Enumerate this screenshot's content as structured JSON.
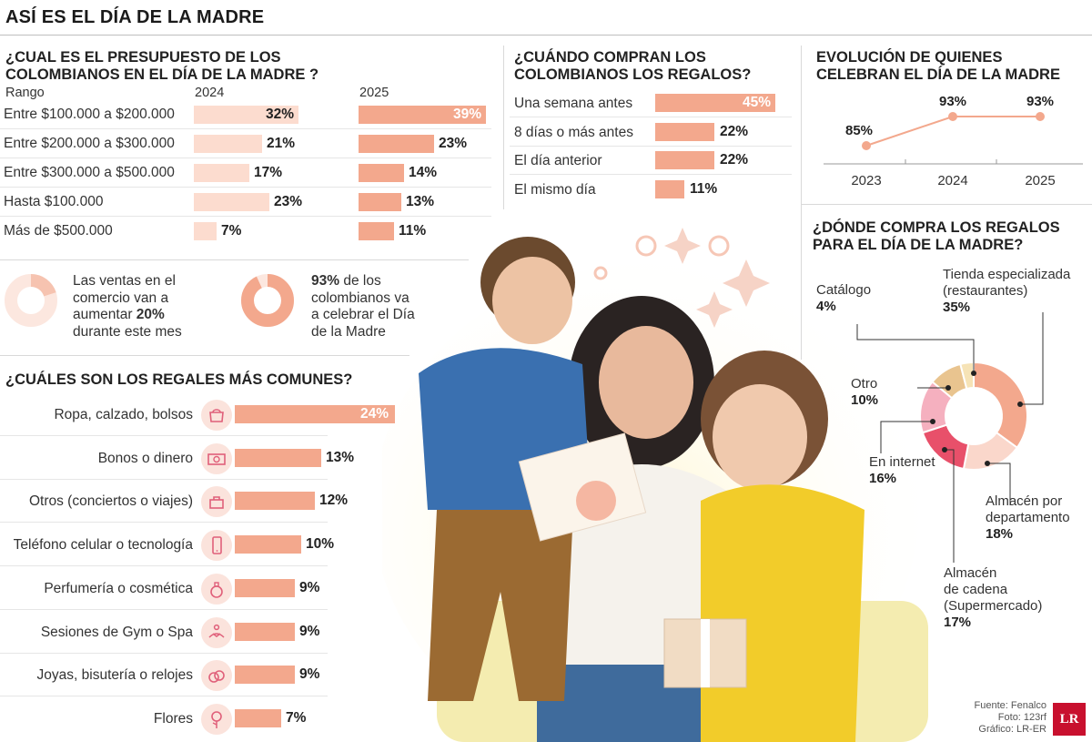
{
  "title": "ASÍ ES EL DÍA DE LA MADRE",
  "colors": {
    "bar2024": "#fcdccf",
    "bar2025": "#f3a88d",
    "barMain": "#f3a88d",
    "line": "#f3a88d"
  },
  "budget": {
    "title_line1": "¿CUAL ES EL PRESUPUESTO DE LOS",
    "title_line2": "COLOMBIANOS EN EL DÍA DE LA MADRE ?",
    "col_range": "Rango",
    "col_2024": "2024",
    "col_2025": "2025",
    "rows": [
      {
        "label": "Entre $100.000 a $200.000",
        "v2024": 32,
        "v2024_text": "32%",
        "v2025": 39,
        "v2025_text": "39%"
      },
      {
        "label": "Entre $200.000 a $300.000",
        "v2024": 21,
        "v2024_text": "21%",
        "v2025": 23,
        "v2025_text": "23%"
      },
      {
        "label": "Entre $300.000 a $500.000",
        "v2024": 17,
        "v2024_text": "17%",
        "v2025": 14,
        "v2025_text": "14%"
      },
      {
        "label": "Hasta $100.000",
        "v2024": 23,
        "v2024_text": "23%",
        "v2025": 13,
        "v2025_text": "13%"
      },
      {
        "label": "Más de $500.000",
        "v2024": 7,
        "v2024_text": "7%",
        "v2025": 11,
        "v2025_text": "11%"
      }
    ]
  },
  "facts": {
    "sales": {
      "line1": "Las ventas en el",
      "line2": "comercio van a",
      "line3_pre": "aumentar ",
      "line3_bold": "20%",
      "line4": "durante este mes",
      "pct": 20
    },
    "celebrate": {
      "line1_bold": "93%",
      "line1_rest": " de los",
      "line2": "colombianos va",
      "line3": "a celebrar el Día",
      "line4": "de la Madre",
      "pct": 93
    }
  },
  "when": {
    "title_line1": "¿CUÁNDO COMPRAN LOS",
    "title_line2": "COLOMBIANOS LOS REGALOS?",
    "rows": [
      {
        "label": "Una semana antes",
        "value": 45,
        "text": "45%"
      },
      {
        "label": "8 días o más antes",
        "value": 22,
        "text": "22%"
      },
      {
        "label": "El día anterior",
        "value": 22,
        "text": "22%"
      },
      {
        "label": "El mismo día",
        "value": 11,
        "text": "11%"
      }
    ]
  },
  "evolution": {
    "title_line1": "EVOLUCIÓN DE QUIENES",
    "title_line2": "CELEBRAN EL DÍA DE LA MADRE",
    "points": [
      {
        "year": "2023",
        "value": 85,
        "text": "85%"
      },
      {
        "year": "2024",
        "value": 93,
        "text": "93%"
      },
      {
        "year": "2025",
        "value": 93,
        "text": "93%"
      }
    ]
  },
  "gifts": {
    "title": "¿CUÁLES SON LOS REGALES MÁS COMUNES?",
    "rows": [
      {
        "label": "Ropa, calzado, bolsos",
        "value": 24,
        "text": "24%",
        "icon": "handbag-icon"
      },
      {
        "label": "Bonos o dinero",
        "value": 13,
        "text": "13%",
        "icon": "money-icon"
      },
      {
        "label": "Otros (conciertos o viajes)",
        "value": 12,
        "text": "12%",
        "icon": "travel-icon"
      },
      {
        "label": "Teléfono celular o tecnología",
        "value": 10,
        "text": "10%",
        "icon": "phone-icon"
      },
      {
        "label": "Perfumería o cosmética",
        "value": 9,
        "text": "9%",
        "icon": "perfume-icon"
      },
      {
        "label": "Sesiones de Gym o Spa",
        "value": 9,
        "text": "9%",
        "icon": "yoga-icon"
      },
      {
        "label": "Joyas, bisutería o relojes",
        "value": 9,
        "text": "9%",
        "icon": "rings-icon"
      },
      {
        "label": "Flores",
        "value": 7,
        "text": "7%",
        "icon": "rose-icon"
      }
    ]
  },
  "where": {
    "title_line1": "¿DÓNDE COMPRA LOS REGALOS",
    "title_line2": "PARA EL DÍA DE LA MADRE?",
    "segments": [
      {
        "name": "Tienda especializada (restaurantes)",
        "label_l1": "Tienda especializada",
        "label_l2": "(restaurantes)",
        "value": 35,
        "text": "35%",
        "color": "#f3a88d"
      },
      {
        "name": "Almacén por departamento",
        "label_l1": "Almacén por",
        "label_l2": "departamento",
        "value": 18,
        "text": "18%",
        "color": "#fad7cb"
      },
      {
        "name": "Almacén de cadena (Supermercado)",
        "label_l1": "Almacén",
        "label_l2": "de cadena",
        "label_l3": "(Supermercado)",
        "value": 17,
        "text": "17%",
        "color": "#e8506a"
      },
      {
        "name": "En internet",
        "label_l1": "En internet",
        "value": 16,
        "text": "16%",
        "color": "#f5b0bf"
      },
      {
        "name": "Otro",
        "label_l1": "Otro",
        "value": 10,
        "text": "10%",
        "color": "#e9c48f"
      },
      {
        "name": "Catálogo",
        "label_l1": "Catálogo",
        "value": 4,
        "text": "4%",
        "color": "#f6e3b6"
      }
    ]
  },
  "credits": {
    "source": "Fuente: Fenalco",
    "photo": "Foto: 123rf",
    "graphic": "Gráfico: LR-ER",
    "logo": "LR"
  }
}
